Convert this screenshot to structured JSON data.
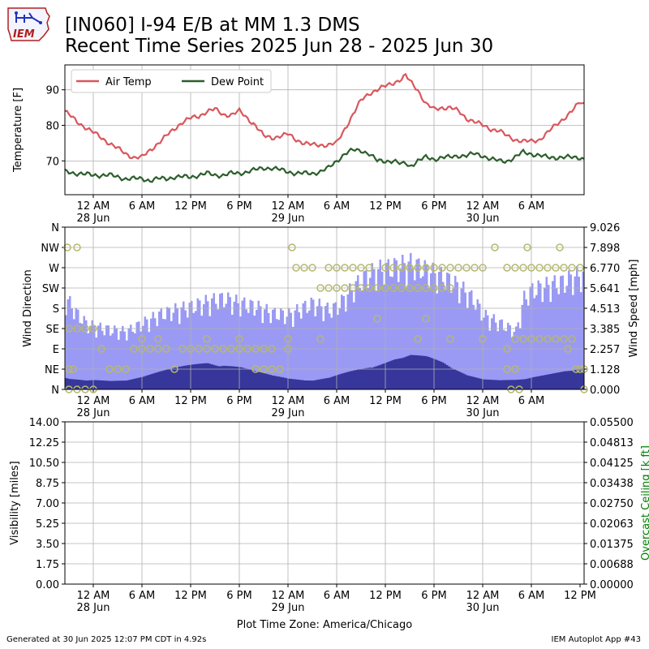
{
  "header": {
    "title_line1": "[IN060] I-94 E/B at MM 1.3 DMS",
    "title_line2": "Recent Time Series 2025 Jun 28 - 2025 Jun 30",
    "logo_text": "IEM"
  },
  "footer": {
    "generated": "Generated at 30 Jun 2025 12:07 PM CDT in 4.92s",
    "app": "IEM Autoplot App #43"
  },
  "xaxis": {
    "title": "Plot Time Zone: America/Chicago",
    "range_hours": [
      -3.5,
      60.5
    ],
    "tick_hours": [
      0,
      6,
      12,
      18,
      24,
      30,
      36,
      42,
      48,
      54
    ],
    "tick_labels": [
      "12 AM",
      "6 AM",
      "12 PM",
      "6 PM",
      "12 AM",
      "6 AM",
      "12 PM",
      "6 PM",
      "12 AM",
      "6 AM"
    ],
    "date_labels": [
      {
        "hour": 0,
        "label": "28 Jun"
      },
      {
        "hour": 24,
        "label": "29 Jun"
      },
      {
        "hour": 48,
        "label": "30 Jun"
      }
    ],
    "bottom_extra_tick": {
      "hour": 60,
      "label": "12 PM"
    }
  },
  "colors": {
    "air_temp": "#d9575d",
    "dew_point": "#2d5e2d",
    "gust": "#9a9af5",
    "speed": "#36369b",
    "direction": "#b5b870",
    "grid": "#b0b0b0",
    "ceiling_label": "#008000"
  },
  "chart_data": [
    {
      "type": "line",
      "title": "",
      "ylabel": "Temperature [F]",
      "ylim": [
        60.5,
        97
      ],
      "yticks": [
        70,
        80,
        90
      ],
      "grid": true,
      "legend_position": "top-left",
      "series": [
        {
          "name": "Air Temp",
          "x": [
            -3.5,
            -2,
            0,
            2,
            3,
            4,
            5,
            6,
            7,
            8,
            9,
            10,
            11,
            12,
            13,
            14,
            15,
            16,
            17,
            18,
            19,
            20,
            21,
            22,
            23,
            24,
            25,
            26,
            27,
            28,
            29,
            30,
            31,
            32,
            33,
            34,
            35,
            36,
            37,
            38,
            38.5,
            39,
            40,
            41,
            42,
            43,
            44,
            45,
            46,
            47,
            48,
            49,
            50,
            51,
            52,
            53,
            54,
            55,
            56,
            57,
            58,
            59,
            60,
            60.5
          ],
          "y": [
            84,
            81,
            78,
            75,
            73.5,
            72,
            71,
            71,
            73,
            75,
            77,
            79,
            81,
            82,
            82.5,
            84,
            84.5,
            83,
            83,
            84,
            82,
            80,
            77,
            76.5,
            77,
            77.5,
            76,
            75,
            74.5,
            74.5,
            74.5,
            75,
            79,
            83,
            87,
            89,
            90,
            91,
            92,
            93,
            94,
            92.5,
            90,
            86,
            84.5,
            85,
            85,
            84,
            82,
            81,
            80,
            79,
            78.5,
            77,
            76,
            75.5,
            75.5,
            76,
            78,
            80,
            82,
            84,
            86.5,
            86
          ]
        },
        {
          "name": "Dew Point",
          "x": [
            -3.5,
            -2,
            0,
            2,
            3,
            4,
            5,
            6,
            7,
            8,
            9,
            10,
            11,
            12,
            13,
            14,
            15,
            16,
            17,
            18,
            19,
            20,
            21,
            22,
            23,
            24,
            25,
            26,
            27,
            28,
            29,
            30,
            31,
            32,
            33,
            34,
            35,
            36,
            37,
            38,
            38.5,
            39,
            40,
            41,
            42,
            43,
            44,
            45,
            46,
            47,
            48,
            49,
            50,
            51,
            52,
            53,
            54,
            55,
            56,
            57,
            58,
            59,
            60,
            60.5
          ],
          "y": [
            67,
            66.5,
            66,
            66,
            65.5,
            65,
            65,
            65,
            64.5,
            65,
            65,
            65.5,
            65.5,
            65.5,
            66,
            66.5,
            66,
            66,
            66.5,
            66.5,
            67,
            67.5,
            68,
            68,
            67.5,
            67,
            66.5,
            66.5,
            66.5,
            67,
            68,
            70,
            72,
            73,
            73,
            72,
            70,
            70,
            70,
            69,
            69.5,
            68.5,
            70,
            71,
            70.5,
            71,
            71,
            71.5,
            71.5,
            72,
            71.5,
            70.5,
            70,
            70,
            71,
            72.5,
            72,
            71.5,
            71,
            71,
            71,
            71,
            71,
            70.5
          ]
        }
      ]
    },
    {
      "type": "bar",
      "title": "",
      "ylabel": "Wind Direction",
      "y2label": "Wind Speed [mph]",
      "ylim_direction": [
        0,
        360
      ],
      "direction_ticks": [
        "N",
        "NE",
        "E",
        "SE",
        "S",
        "SW",
        "W",
        "NW",
        "N"
      ],
      "ylim_speed": [
        0,
        9.026
      ],
      "speed_ticks": [
        "0.000",
        "1.128",
        "2.257",
        "3.385",
        "4.513",
        "5.641",
        "6.770",
        "7.898",
        "9.026"
      ],
      "grid": true,
      "series": [
        {
          "name": "Gust",
          "x": [
            -3.5,
            -3,
            -2,
            -1,
            0,
            2,
            4,
            6,
            8,
            10,
            12,
            14,
            16,
            18,
            20,
            22,
            24,
            26,
            27,
            28,
            29,
            30,
            31,
            32,
            33,
            34,
            35,
            36,
            37,
            38,
            39,
            40,
            41,
            42,
            43,
            44,
            45,
            46,
            47,
            48,
            50,
            52,
            53,
            54,
            56,
            58,
            59,
            60,
            60.5
          ],
          "y": [
            5.5,
            5.2,
            4.5,
            4.0,
            3.8,
            3.6,
            3.5,
            4.0,
            4.5,
            4.8,
            5.0,
            5.3,
            5.5,
            5.2,
            5.0,
            4.6,
            4.5,
            5.0,
            5.2,
            5.0,
            4.8,
            5.0,
            5.6,
            6.2,
            6.6,
            7.0,
            7.2,
            7.3,
            7.4,
            7.5,
            7.6,
            7.4,
            7.2,
            7.0,
            6.8,
            6.5,
            6.2,
            5.8,
            5.3,
            4.5,
            4.0,
            3.5,
            5.5,
            6.0,
            6.3,
            6.5,
            6.8,
            6.9,
            6.8
          ]
        },
        {
          "name": "Speed",
          "x": [
            -3.5,
            -3,
            -2,
            -1,
            0,
            2,
            4,
            6,
            8,
            10,
            12,
            14,
            16,
            18,
            20,
            22,
            24,
            26,
            27,
            28,
            29,
            30,
            31,
            32,
            33,
            34,
            35,
            36,
            37,
            38,
            39,
            40,
            41,
            42,
            43,
            44,
            45,
            46,
            47,
            48,
            50,
            52,
            53,
            54,
            56,
            58,
            59,
            60,
            60.5
          ],
          "y": [
            0.9,
            0.8,
            0.7,
            0.6,
            0.6,
            0.5,
            0.5,
            0.7,
            1.0,
            1.3,
            1.6,
            1.9,
            1.8,
            1.5,
            1.1,
            0.8,
            0.6,
            0.5,
            0.5,
            0.6,
            0.7,
            0.9,
            1.1,
            1.3,
            1.5,
            1.7,
            1.8,
            1.9,
            2.0,
            2.0,
            2.1,
            2.0,
            1.9,
            1.7,
            1.5,
            1.2,
            1.0,
            0.8,
            0.7,
            0.6,
            0.6,
            0.7,
            0.8,
            0.9,
            1.0,
            1.1,
            1.1,
            1.2,
            1.1
          ]
        },
        {
          "name": "Direction",
          "points": [
            [
              -3.2,
              315
            ],
            [
              -2,
              315
            ],
            [
              -3,
              45
            ],
            [
              -2.5,
              45
            ],
            [
              -3,
              0
            ],
            [
              -2,
              0
            ],
            [
              -1,
              0
            ],
            [
              0,
              0
            ],
            [
              -3,
              135
            ],
            [
              -2,
              135
            ],
            [
              -1,
              135
            ],
            [
              0,
              135
            ],
            [
              1,
              90
            ],
            [
              2,
              45
            ],
            [
              3,
              45
            ],
            [
              4,
              45
            ],
            [
              5,
              90
            ],
            [
              6,
              90
            ],
            [
              6,
              112
            ],
            [
              7,
              90
            ],
            [
              8,
              90
            ],
            [
              9,
              90
            ],
            [
              10,
              45
            ],
            [
              11,
              90
            ],
            [
              12,
              90
            ],
            [
              13,
              90
            ],
            [
              14,
              90
            ],
            [
              15,
              90
            ],
            [
              16,
              90
            ],
            [
              17,
              90
            ],
            [
              18,
              90
            ],
            [
              19,
              90
            ],
            [
              20,
              90
            ],
            [
              21,
              90
            ],
            [
              22,
              90
            ],
            [
              20,
              45
            ],
            [
              21,
              45
            ],
            [
              22,
              45
            ],
            [
              23,
              45
            ],
            [
              24,
              90
            ],
            [
              24,
              112
            ],
            [
              24.5,
              315
            ],
            [
              25,
              270
            ],
            [
              26,
              270
            ],
            [
              27,
              270
            ],
            [
              28,
              112
            ],
            [
              29,
              270
            ],
            [
              30,
              270
            ],
            [
              31,
              270
            ],
            [
              32,
              270
            ],
            [
              33,
              270
            ],
            [
              34,
              270
            ],
            [
              28,
              225
            ],
            [
              29,
              225
            ],
            [
              30,
              225
            ],
            [
              31,
              225
            ],
            [
              32,
              225
            ],
            [
              33,
              225
            ],
            [
              34,
              225
            ],
            [
              35,
              225
            ],
            [
              36,
              225
            ],
            [
              37,
              225
            ],
            [
              38,
              225
            ],
            [
              39,
              225
            ],
            [
              40,
              225
            ],
            [
              41,
              225
            ],
            [
              42,
              225
            ],
            [
              43,
              225
            ],
            [
              44,
              225
            ],
            [
              36,
              270
            ],
            [
              37,
              270
            ],
            [
              38,
              270
            ],
            [
              39,
              270
            ],
            [
              40,
              270
            ],
            [
              41,
              270
            ],
            [
              42,
              270
            ],
            [
              43,
              270
            ],
            [
              44,
              270
            ],
            [
              45,
              270
            ],
            [
              46,
              270
            ],
            [
              47,
              270
            ],
            [
              48,
              270
            ],
            [
              35,
              157
            ],
            [
              41,
              157
            ],
            [
              48,
              112
            ],
            [
              49.5,
              315
            ],
            [
              51,
              90
            ],
            [
              51,
              270
            ],
            [
              52,
              270
            ],
            [
              53,
              270
            ],
            [
              54,
              270
            ],
            [
              55,
              270
            ],
            [
              56,
              270
            ],
            [
              57,
              270
            ],
            [
              58,
              270
            ],
            [
              59,
              270
            ],
            [
              60,
              270
            ],
            [
              53.5,
              315
            ],
            [
              57.5,
              315
            ],
            [
              52,
              112
            ],
            [
              53,
              112
            ],
            [
              54,
              112
            ],
            [
              55,
              112
            ],
            [
              56,
              112
            ],
            [
              57,
              112
            ],
            [
              58,
              112
            ],
            [
              59,
              112
            ],
            [
              58.5,
              90
            ],
            [
              51,
              45
            ],
            [
              52,
              45
            ],
            [
              59.5,
              45
            ],
            [
              60,
              45
            ],
            [
              60.5,
              45
            ],
            [
              51.5,
              0
            ],
            [
              52.5,
              0
            ],
            [
              60.5,
              0
            ],
            [
              8,
              112
            ],
            [
              14,
              112
            ],
            [
              18,
              112
            ],
            [
              40,
              112
            ],
            [
              44,
              112
            ]
          ]
        }
      ]
    },
    {
      "type": "line",
      "title": "",
      "ylabel": "Visibility [miles]",
      "y2label": "Overcast Ceiling [k ft]",
      "ylim": [
        0,
        14
      ],
      "yticks": [
        "0.00",
        "1.75",
        "3.50",
        "5.25",
        "7.00",
        "8.75",
        "10.50",
        "12.25",
        "14.00"
      ],
      "ylim2": [
        0,
        0.055
      ],
      "y2ticks": [
        "0.00000",
        "0.00688",
        "0.01375",
        "0.02063",
        "0.02750",
        "0.03438",
        "0.04125",
        "0.04813",
        "0.05500"
      ],
      "grid": true,
      "series": []
    }
  ]
}
